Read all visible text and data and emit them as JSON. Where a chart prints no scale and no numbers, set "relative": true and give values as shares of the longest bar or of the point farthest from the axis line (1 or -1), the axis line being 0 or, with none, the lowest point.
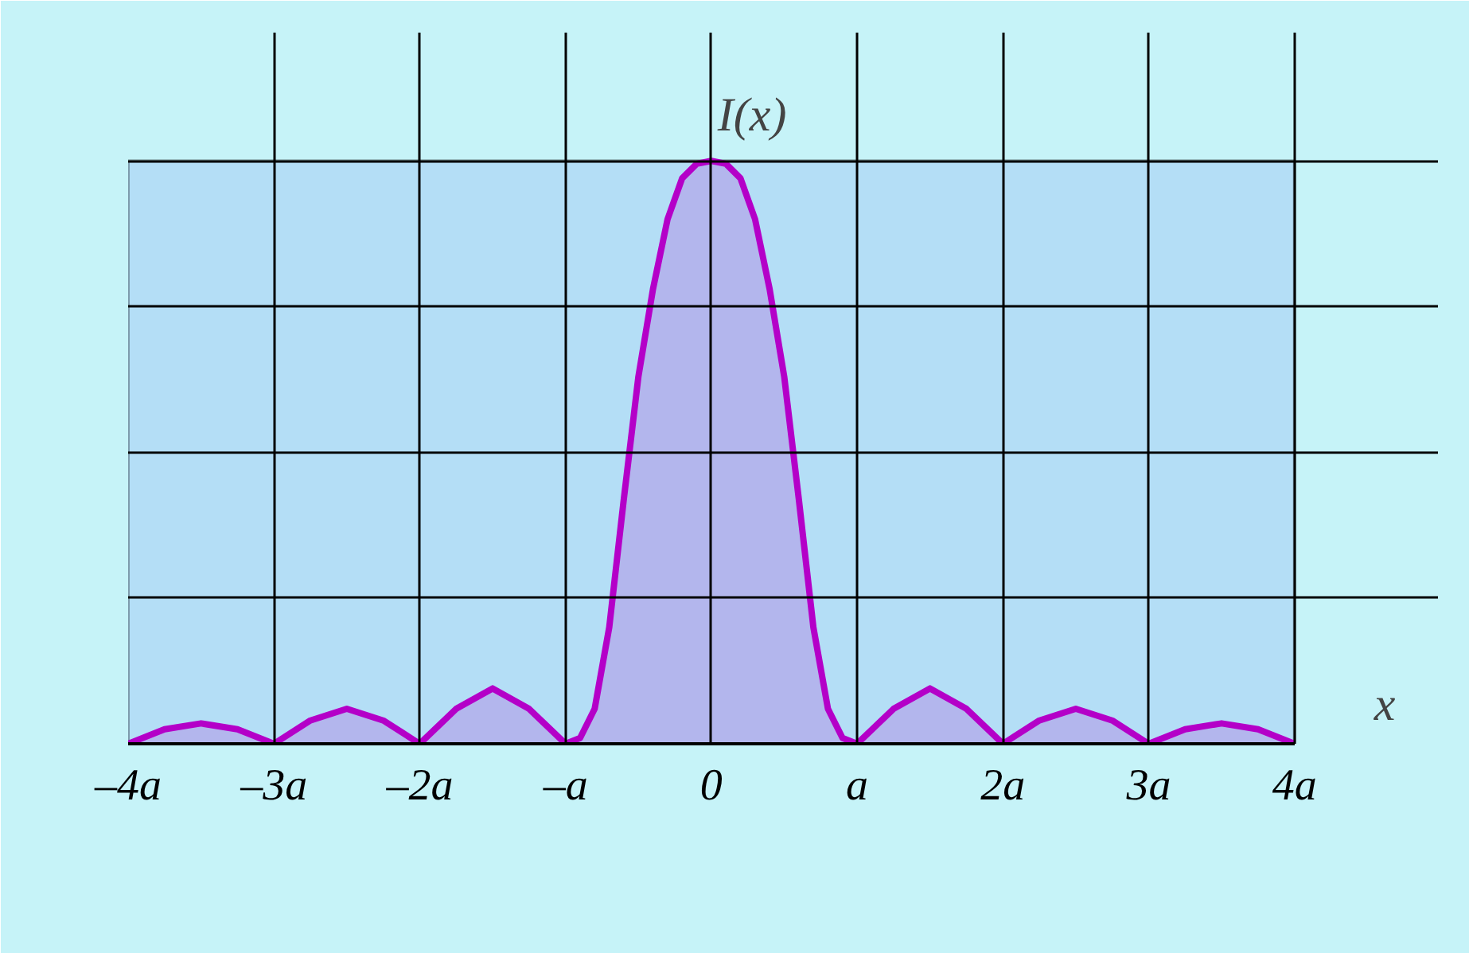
{
  "chart_data": {
    "type": "area",
    "relative": true,
    "xlabel": "x",
    "ylabel": "I(x)",
    "x": [
      -4,
      -3.75,
      -3.5,
      -3.25,
      -3,
      -2.75,
      -2.5,
      -2.25,
      -2,
      -1.75,
      -1.5,
      -1.25,
      -1,
      -0.9,
      -0.8,
      -0.7,
      -0.6,
      -0.5,
      -0.4,
      -0.3,
      -0.2,
      -0.1,
      0,
      0.1,
      0.2,
      0.3,
      0.4,
      0.5,
      0.6,
      0.7,
      0.8,
      0.9,
      1,
      1.25,
      1.5,
      1.75,
      2,
      2.25,
      2.5,
      2.75,
      3,
      3.25,
      3.5,
      3.75,
      4
    ],
    "series": [
      {
        "color": "#b400c8",
        "values": [
          0,
          0.025,
          0.035,
          0.025,
          0,
          0.04,
          0.06,
          0.04,
          0,
          0.06,
          0.095,
          0.06,
          0,
          0.01,
          0.06,
          0.2,
          0.42,
          0.63,
          0.78,
          0.9,
          0.97,
          0.995,
          1,
          0.995,
          0.97,
          0.9,
          0.78,
          0.63,
          0.42,
          0.2,
          0.06,
          0.01,
          0,
          0.06,
          0.095,
          0.06,
          0,
          0.04,
          0.06,
          0.04,
          0,
          0.025,
          0.035,
          0.025,
          0
        ]
      }
    ],
    "xlim": [
      -4,
      4
    ],
    "xticks": [
      {
        "value": -4,
        "label": "–4a"
      },
      {
        "value": -3,
        "label": "–3a"
      },
      {
        "value": -2,
        "label": "–2a"
      },
      {
        "value": -1,
        "label": "–a"
      },
      0,
      {
        "value": 1,
        "label": "a"
      },
      {
        "value": 2,
        "label": "2a"
      },
      {
        "value": 3,
        "label": "3a"
      },
      {
        "value": 4,
        "label": "4a"
      }
    ],
    "grid": true
  }
}
